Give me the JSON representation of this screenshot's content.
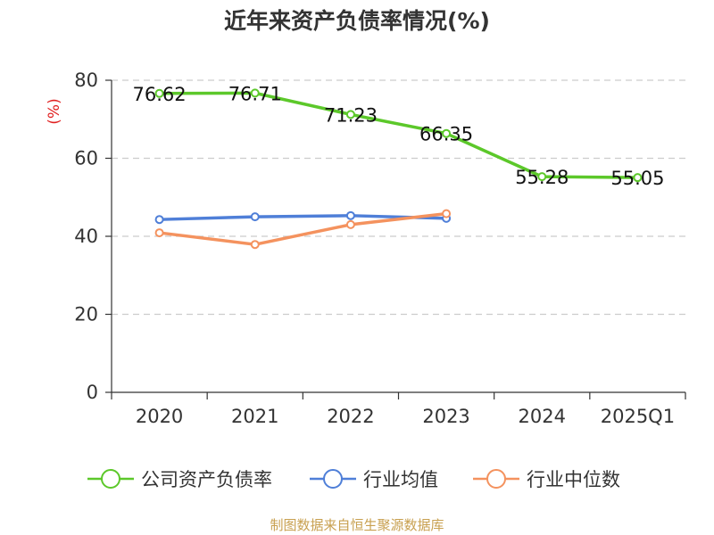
{
  "title": "近年来资产负债率情况(%)",
  "source": "制图数据来自恒生聚源数据库",
  "chart_data": {
    "type": "line",
    "categories": [
      "2020",
      "2021",
      "2022",
      "2023",
      "2024",
      "2025Q1"
    ],
    "ylabel": "(%)",
    "ylim": [
      0,
      80
    ],
    "yticks": [
      0,
      20,
      40,
      60,
      80
    ],
    "grid": true,
    "legend_position": "bottom",
    "series": [
      {
        "name": "公司资产负债率",
        "color": "#5cc82a",
        "values": [
          76.62,
          76.71,
          71.23,
          66.35,
          55.28,
          55.05
        ],
        "labels": [
          "76.62",
          "76.71",
          "71.23",
          "66.35",
          "55.28",
          "55.05"
        ]
      },
      {
        "name": "行业均值",
        "color": "#4f7fd8",
        "values": [
          44.3,
          45.0,
          45.3,
          44.6,
          null,
          null
        ]
      },
      {
        "name": "行业中位数",
        "color": "#f4925e",
        "values": [
          40.9,
          37.9,
          43.0,
          45.8,
          null,
          null
        ]
      }
    ]
  }
}
